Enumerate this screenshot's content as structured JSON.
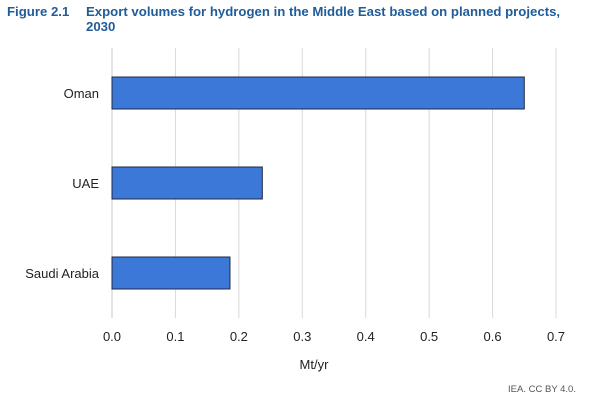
{
  "figure": {
    "label": "Figure 2.1",
    "title": "Export volumes for hydrogen in the Middle East based on planned projects, 2030"
  },
  "attribution": "IEA. CC BY 4.0.",
  "colors": {
    "bar_fill": "#3c78d8",
    "bar_stroke": "#1f2a44",
    "grid": "#d9d9d9",
    "title": "#1f5c99"
  },
  "chart_data": {
    "type": "bar",
    "orientation": "horizontal",
    "categories": [
      "Oman",
      "UAE",
      "Saudi Arabia"
    ],
    "values": [
      0.65,
      0.237,
      0.186
    ],
    "xlabel": "Mt/yr",
    "ylabel": "",
    "xlim": [
      0,
      0.7
    ],
    "xticks": [
      "0.0",
      "0.1",
      "0.2",
      "0.3",
      "0.4",
      "0.5",
      "0.6",
      "0.7"
    ],
    "grid": true,
    "legend": "none"
  }
}
